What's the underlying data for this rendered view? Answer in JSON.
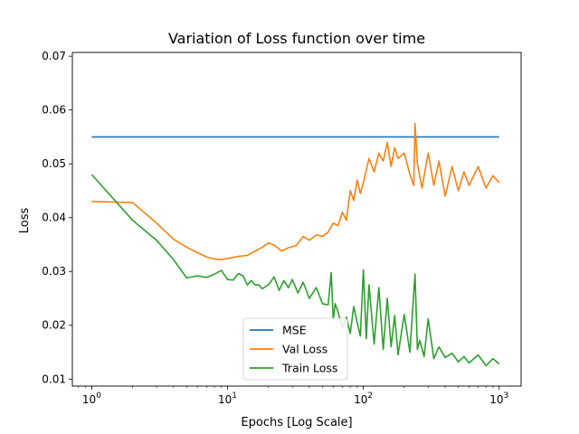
{
  "chart_data": {
    "type": "line",
    "title": "Variation of Loss function over time",
    "xlabel": "Epochs [Log Scale]",
    "ylabel": "Loss",
    "xscale": "log",
    "xlim": [
      0.72,
      1450
    ],
    "ylim": [
      0.0087,
      0.0707
    ],
    "x_ticks": [
      {
        "base": "10",
        "exp": "0",
        "value": 1
      },
      {
        "base": "10",
        "exp": "1",
        "value": 10
      },
      {
        "base": "10",
        "exp": "2",
        "value": 100
      },
      {
        "base": "10",
        "exp": "3",
        "value": 1000
      }
    ],
    "y_ticks": [
      "0.01",
      "0.02",
      "0.03",
      "0.04",
      "0.05",
      "0.06",
      "0.07"
    ],
    "legend_position": "lower-center",
    "grid": false,
    "series": [
      {
        "name": "MSE",
        "color": "#1f77b4",
        "x": [
          1,
          1000
        ],
        "y": [
          0.055,
          0.055
        ]
      },
      {
        "name": "Val Loss",
        "color": "#ff7f0e",
        "x": [
          1,
          2,
          3,
          4,
          5,
          6,
          7,
          8,
          9,
          10,
          12,
          14,
          16,
          18,
          20,
          22,
          25,
          28,
          32,
          36,
          40,
          45,
          50,
          55,
          60,
          65,
          70,
          75,
          80,
          85,
          90,
          95,
          100,
          110,
          120,
          130,
          140,
          150,
          160,
          170,
          180,
          200,
          220,
          235,
          240,
          250,
          270,
          300,
          330,
          360,
          400,
          450,
          500,
          550,
          600,
          700,
          800,
          900,
          1000
        ],
        "y": [
          0.043,
          0.0428,
          0.039,
          0.036,
          0.0345,
          0.0335,
          0.0327,
          0.0323,
          0.0322,
          0.0324,
          0.0328,
          0.033,
          0.0338,
          0.0345,
          0.0353,
          0.0349,
          0.0338,
          0.0344,
          0.0348,
          0.0365,
          0.0358,
          0.0368,
          0.0365,
          0.0373,
          0.039,
          0.0385,
          0.041,
          0.0395,
          0.045,
          0.0432,
          0.047,
          0.0445,
          0.0465,
          0.051,
          0.0485,
          0.052,
          0.0505,
          0.054,
          0.0495,
          0.053,
          0.051,
          0.052,
          0.048,
          0.046,
          0.0575,
          0.05,
          0.0455,
          0.052,
          0.046,
          0.0505,
          0.044,
          0.0495,
          0.045,
          0.0485,
          0.046,
          0.0495,
          0.0455,
          0.0478,
          0.0465
        ]
      },
      {
        "name": "Train Loss",
        "color": "#2ca02c",
        "x": [
          1,
          2,
          3,
          4,
          5,
          6,
          7,
          8,
          9,
          10,
          11,
          12,
          13,
          14,
          15,
          16,
          17,
          18,
          20,
          22,
          24,
          26,
          28,
          30,
          33,
          36,
          40,
          45,
          50,
          55,
          58,
          60,
          62,
          65,
          70,
          75,
          80,
          85,
          90,
          95,
          100,
          105,
          110,
          120,
          130,
          140,
          150,
          160,
          170,
          180,
          200,
          220,
          240,
          250,
          260,
          280,
          300,
          330,
          360,
          400,
          450,
          500,
          550,
          600,
          700,
          800,
          900,
          1000
        ],
        "y": [
          0.048,
          0.0395,
          0.0358,
          0.0322,
          0.0288,
          0.0292,
          0.0289,
          0.0295,
          0.0302,
          0.0285,
          0.0284,
          0.0296,
          0.0292,
          0.0275,
          0.0283,
          0.0275,
          0.0275,
          0.0268,
          0.0275,
          0.029,
          0.0265,
          0.0283,
          0.027,
          0.0285,
          0.026,
          0.028,
          0.025,
          0.027,
          0.024,
          0.0238,
          0.0298,
          0.021,
          0.024,
          0.0225,
          0.0195,
          0.0215,
          0.0185,
          0.0235,
          0.0205,
          0.018,
          0.0303,
          0.0175,
          0.0275,
          0.0165,
          0.027,
          0.0155,
          0.025,
          0.016,
          0.0218,
          0.0145,
          0.022,
          0.015,
          0.0295,
          0.0155,
          0.0172,
          0.0142,
          0.0212,
          0.0138,
          0.016,
          0.014,
          0.0148,
          0.0132,
          0.0142,
          0.013,
          0.0145,
          0.0125,
          0.0138,
          0.0128
        ]
      }
    ]
  }
}
